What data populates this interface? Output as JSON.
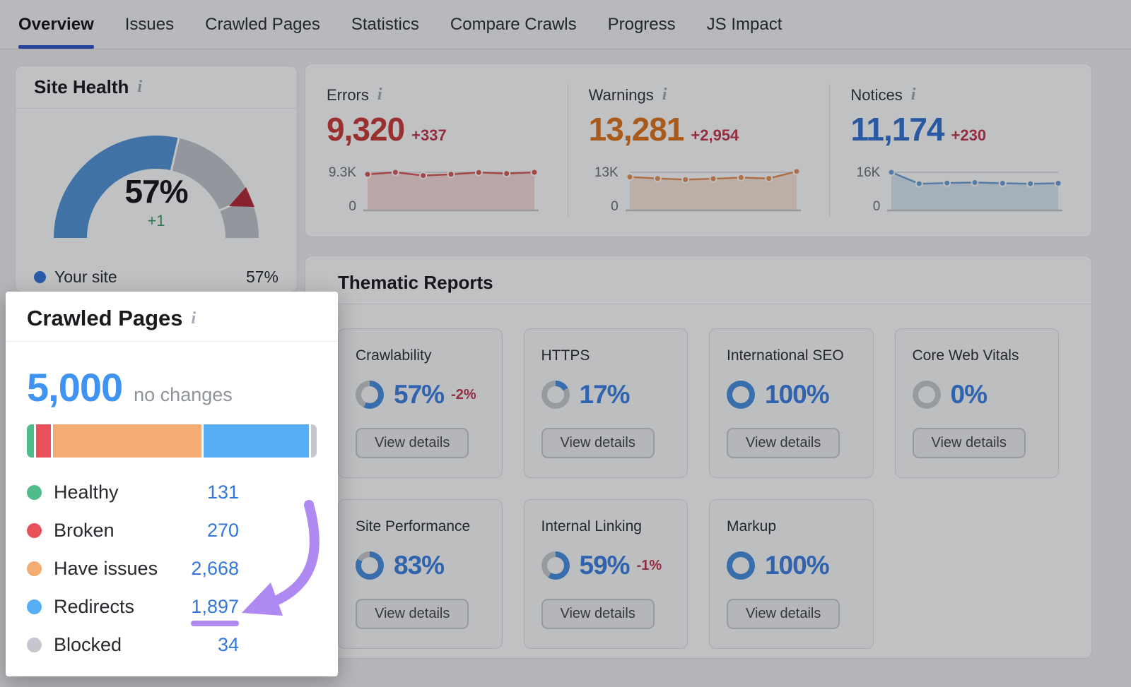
{
  "nav": {
    "tabs": [
      {
        "label": "Overview",
        "active": true
      },
      {
        "label": "Issues",
        "active": false
      },
      {
        "label": "Crawled Pages",
        "active": false
      },
      {
        "label": "Statistics",
        "active": false
      },
      {
        "label": "Compare Crawls",
        "active": false
      },
      {
        "label": "Progress",
        "active": false
      },
      {
        "label": "JS Impact",
        "active": false
      }
    ]
  },
  "icons": {
    "info": "i"
  },
  "colors": {
    "accent": "#3059c9",
    "gauge_blue": "#5596d8",
    "gauge_gray": "#c3c6cc",
    "benchmark_red": "#b52d3a",
    "positive_green": "#3e9e68",
    "negative_red": "#c43a50",
    "donut_blue": "#4a90e2",
    "donut_gray": "#c9ccd2",
    "percent_blue": "#3f82e4",
    "link_blue": "#3377dd",
    "total_blue": "#4193f2",
    "highlight_purple": "#ae89f2"
  },
  "site_health": {
    "title": "Site Health",
    "score_label": "57%",
    "score_percent": 57,
    "benchmark_percent": 87,
    "delta": "+1",
    "legend_label": "Your site",
    "legend_value": "57%"
  },
  "metrics": [
    {
      "label": "Errors",
      "value": "9,320",
      "delta": "+337",
      "value_color": "#cc3d3d",
      "axis_top": "9.3K",
      "axis_bottom": "0"
    },
    {
      "label": "Warnings",
      "value": "13,281",
      "delta": "+2,954",
      "value_color": "#e0761f",
      "axis_top": "13K",
      "axis_bottom": "0"
    },
    {
      "label": "Notices",
      "value": "11,174",
      "delta": "+230",
      "value_color": "#3474d4",
      "axis_top": "16K",
      "axis_bottom": "0"
    }
  ],
  "thematic": {
    "title": "Thematic Reports",
    "cards": [
      {
        "label": "Crawlability",
        "percent": 57,
        "percent_label": "57%",
        "delta": "-2%",
        "button_label": "View details"
      },
      {
        "label": "HTTPS",
        "percent": 17,
        "percent_label": "17%",
        "delta": "",
        "button_label": "View details"
      },
      {
        "label": "International SEO",
        "percent": 100,
        "percent_label": "100%",
        "delta": "",
        "button_label": "View details"
      },
      {
        "label": "Core Web Vitals",
        "percent": 0,
        "percent_label": "0%",
        "delta": "",
        "button_label": "View details"
      },
      {
        "label": "Site Performance",
        "percent": 83,
        "percent_label": "83%",
        "delta": "",
        "button_label": "View details"
      },
      {
        "label": "Internal Linking",
        "percent": 59,
        "percent_label": "59%",
        "delta": "-1%",
        "button_label": "View details"
      },
      {
        "label": "Markup",
        "percent": 100,
        "percent_label": "100%",
        "delta": "",
        "button_label": "View details"
      }
    ]
  },
  "spotlight": {
    "title": "Crawled Pages",
    "total": "5,000",
    "note": "no changes",
    "categories": [
      {
        "label": "Healthy",
        "value_label": "131",
        "value": 131,
        "color": "#50bb8b"
      },
      {
        "label": "Broken",
        "value_label": "270",
        "value": 270,
        "color": "#e8515a"
      },
      {
        "label": "Have issues",
        "value_label": "2,668",
        "value": 2668,
        "color": "#f3ad72"
      },
      {
        "label": "Redirects",
        "value_label": "1,897",
        "value": 1897,
        "color": "#57aef5"
      },
      {
        "label": "Blocked",
        "value_label": "34",
        "value": 34,
        "color": "#c5c7cc"
      }
    ]
  },
  "chart_data": [
    {
      "type": "area",
      "name": "errors_trend",
      "x": [
        1,
        2,
        3,
        4,
        5,
        6,
        7
      ],
      "values": [
        8800,
        9300,
        8500,
        8800,
        9250,
        9000,
        9300
      ],
      "ylim": [
        0,
        9300
      ],
      "axis_labels": [
        "9.3K",
        "0"
      ],
      "color": "#d95c5c",
      "fill": "rgba(217,92,92,0.22)"
    },
    {
      "type": "area",
      "name": "warnings_trend",
      "x": [
        1,
        2,
        3,
        4,
        5,
        6,
        7
      ],
      "values": [
        11400,
        10900,
        10500,
        10800,
        11200,
        10900,
        13280
      ],
      "ylim": [
        0,
        13000
      ],
      "axis_labels": [
        "13K",
        "0"
      ],
      "color": "#e8935b",
      "fill": "rgba(232,147,91,0.22)"
    },
    {
      "type": "area",
      "name": "notices_trend",
      "x": [
        1,
        2,
        3,
        4,
        5,
        6,
        7
      ],
      "values": [
        16000,
        11200,
        11500,
        11700,
        11400,
        11200,
        11400
      ],
      "ylim": [
        0,
        16000
      ],
      "axis_labels": [
        "16K",
        "0"
      ],
      "color": "#6fa3d8",
      "fill": "rgba(111,163,216,0.25)"
    },
    {
      "type": "gauge",
      "name": "site_health_gauge",
      "value": 57,
      "max": 100,
      "benchmark": 87
    },
    {
      "type": "donut",
      "name": "thematic_scores",
      "categories": [
        "Crawlability",
        "HTTPS",
        "International SEO",
        "Core Web Vitals",
        "Site Performance",
        "Internal Linking",
        "Markup"
      ],
      "values": [
        57,
        17,
        100,
        0,
        83,
        59,
        100
      ]
    },
    {
      "type": "stacked_bar",
      "name": "crawled_pages_breakdown",
      "categories": [
        "Healthy",
        "Broken",
        "Have issues",
        "Redirects",
        "Blocked"
      ],
      "values": [
        131,
        270,
        2668,
        1897,
        34
      ],
      "total": 5000,
      "colors": [
        "#50bb8b",
        "#e8515a",
        "#f3ad72",
        "#57aef5",
        "#c5c7cc"
      ]
    }
  ]
}
